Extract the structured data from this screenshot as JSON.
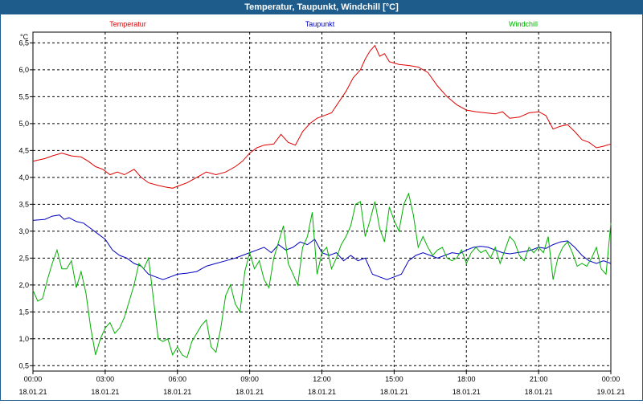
{
  "window": {
    "title": "Temperatur, Taupunkt, Windchill [°C]"
  },
  "chart_data": {
    "type": "line",
    "title": "Temperatur, Taupunkt, Windchill [°C]",
    "ylabel": "°C",
    "ylim": [
      0.4,
      6.7
    ],
    "xlim": [
      0,
      24
    ],
    "grid": true,
    "legend": "top",
    "x_ticks": [
      {
        "time": "00:00",
        "date": "18.01.21"
      },
      {
        "time": "03:00",
        "date": "18.01.21"
      },
      {
        "time": "06:00",
        "date": "18.01.21"
      },
      {
        "time": "09:00",
        "date": "18.01.21"
      },
      {
        "time": "12:00",
        "date": "18.01.21"
      },
      {
        "time": "15:00",
        "date": "18.01.21"
      },
      {
        "time": "18:00",
        "date": "18.01.21"
      },
      {
        "time": "21:00",
        "date": "18.01.21"
      },
      {
        "time": "00:00",
        "date": "19.01.21"
      }
    ],
    "y_ticks": [
      "0,5",
      "1,0",
      "1,5",
      "2,0",
      "2,5",
      "3,0",
      "3,5",
      "4,0",
      "4,5",
      "5,0",
      "5,5",
      "6,0",
      "6,5"
    ],
    "series": [
      {
        "name": "Temperatur",
        "color": "#e00000",
        "points": [
          [
            0,
            4.3
          ],
          [
            0.5,
            4.35
          ],
          [
            0.8,
            4.4
          ],
          [
            1.2,
            4.45
          ],
          [
            1.6,
            4.4
          ],
          [
            2,
            4.38
          ],
          [
            2.3,
            4.3
          ],
          [
            2.6,
            4.2
          ],
          [
            2.9,
            4.15
          ],
          [
            3.2,
            4.05
          ],
          [
            3.5,
            4.1
          ],
          [
            3.8,
            4.05
          ],
          [
            4.2,
            4.15
          ],
          [
            4.5,
            4.0
          ],
          [
            4.8,
            3.9
          ],
          [
            5.2,
            3.85
          ],
          [
            5.5,
            3.82
          ],
          [
            5.8,
            3.8
          ],
          [
            6.1,
            3.85
          ],
          [
            6.4,
            3.9
          ],
          [
            6.8,
            4.0
          ],
          [
            7.2,
            4.1
          ],
          [
            7.6,
            4.05
          ],
          [
            8,
            4.1
          ],
          [
            8.4,
            4.2
          ],
          [
            8.7,
            4.3
          ],
          [
            9,
            4.45
          ],
          [
            9.3,
            4.55
          ],
          [
            9.6,
            4.6
          ],
          [
            10,
            4.62
          ],
          [
            10.3,
            4.8
          ],
          [
            10.6,
            4.65
          ],
          [
            10.9,
            4.6
          ],
          [
            11.2,
            4.85
          ],
          [
            11.5,
            5.0
          ],
          [
            11.8,
            5.1
          ],
          [
            12.1,
            5.15
          ],
          [
            12.4,
            5.2
          ],
          [
            12.7,
            5.4
          ],
          [
            13,
            5.6
          ],
          [
            13.3,
            5.85
          ],
          [
            13.6,
            6.0
          ],
          [
            13.8,
            6.2
          ],
          [
            14,
            6.35
          ],
          [
            14.2,
            6.45
          ],
          [
            14.4,
            6.25
          ],
          [
            14.6,
            6.3
          ],
          [
            14.8,
            6.15
          ],
          [
            15.2,
            6.1
          ],
          [
            15.6,
            6.08
          ],
          [
            16,
            6.05
          ],
          [
            16.4,
            5.95
          ],
          [
            16.8,
            5.7
          ],
          [
            17.2,
            5.5
          ],
          [
            17.6,
            5.35
          ],
          [
            18,
            5.25
          ],
          [
            18.4,
            5.22
          ],
          [
            18.8,
            5.2
          ],
          [
            19.2,
            5.18
          ],
          [
            19.5,
            5.22
          ],
          [
            19.8,
            5.1
          ],
          [
            20.2,
            5.12
          ],
          [
            20.6,
            5.2
          ],
          [
            21,
            5.22
          ],
          [
            21.3,
            5.15
          ],
          [
            21.6,
            4.9
          ],
          [
            21.9,
            4.95
          ],
          [
            22.2,
            4.98
          ],
          [
            22.5,
            4.85
          ],
          [
            22.8,
            4.7
          ],
          [
            23.1,
            4.65
          ],
          [
            23.4,
            4.55
          ],
          [
            23.7,
            4.58
          ],
          [
            24,
            4.62
          ]
        ]
      },
      {
        "name": "Taupunkt",
        "color": "#0000c0",
        "points": [
          [
            0,
            3.2
          ],
          [
            0.5,
            3.22
          ],
          [
            0.8,
            3.28
          ],
          [
            1.1,
            3.3
          ],
          [
            1.3,
            3.22
          ],
          [
            1.5,
            3.25
          ],
          [
            1.8,
            3.18
          ],
          [
            2.1,
            3.15
          ],
          [
            2.4,
            3.05
          ],
          [
            2.7,
            2.95
          ],
          [
            3,
            2.85
          ],
          [
            3.3,
            2.65
          ],
          [
            3.6,
            2.55
          ],
          [
            3.9,
            2.5
          ],
          [
            4.2,
            2.4
          ],
          [
            4.5,
            2.35
          ],
          [
            4.8,
            2.2
          ],
          [
            5.1,
            2.15
          ],
          [
            5.4,
            2.1
          ],
          [
            5.7,
            2.15
          ],
          [
            6,
            2.2
          ],
          [
            6.4,
            2.22
          ],
          [
            6.8,
            2.25
          ],
          [
            7.2,
            2.35
          ],
          [
            7.6,
            2.4
          ],
          [
            8,
            2.45
          ],
          [
            8.4,
            2.5
          ],
          [
            8.7,
            2.55
          ],
          [
            9,
            2.6
          ],
          [
            9.3,
            2.65
          ],
          [
            9.6,
            2.7
          ],
          [
            9.9,
            2.6
          ],
          [
            10.2,
            2.75
          ],
          [
            10.5,
            2.65
          ],
          [
            10.8,
            2.7
          ],
          [
            11.1,
            2.8
          ],
          [
            11.4,
            2.75
          ],
          [
            11.7,
            2.85
          ],
          [
            12,
            2.6
          ],
          [
            12.3,
            2.55
          ],
          [
            12.6,
            2.6
          ],
          [
            12.9,
            2.45
          ],
          [
            13.2,
            2.55
          ],
          [
            13.5,
            2.45
          ],
          [
            13.8,
            2.5
          ],
          [
            14.1,
            2.2
          ],
          [
            14.4,
            2.15
          ],
          [
            14.7,
            2.1
          ],
          [
            15,
            2.15
          ],
          [
            15.3,
            2.2
          ],
          [
            15.6,
            2.45
          ],
          [
            15.9,
            2.55
          ],
          [
            16.2,
            2.6
          ],
          [
            16.5,
            2.55
          ],
          [
            16.8,
            2.5
          ],
          [
            17.1,
            2.55
          ],
          [
            17.4,
            2.6
          ],
          [
            17.7,
            2.58
          ],
          [
            18,
            2.65
          ],
          [
            18.3,
            2.7
          ],
          [
            18.6,
            2.72
          ],
          [
            18.9,
            2.7
          ],
          [
            19.2,
            2.65
          ],
          [
            19.5,
            2.6
          ],
          [
            19.8,
            2.58
          ],
          [
            20.1,
            2.6
          ],
          [
            20.4,
            2.62
          ],
          [
            20.7,
            2.65
          ],
          [
            21,
            2.7
          ],
          [
            21.3,
            2.68
          ],
          [
            21.6,
            2.75
          ],
          [
            21.9,
            2.8
          ],
          [
            22.2,
            2.82
          ],
          [
            22.5,
            2.7
          ],
          [
            22.8,
            2.55
          ],
          [
            23.1,
            2.45
          ],
          [
            23.4,
            2.4
          ],
          [
            23.7,
            2.45
          ],
          [
            24,
            2.4
          ]
        ]
      },
      {
        "name": "Windchill",
        "color": "#00b000",
        "points": [
          [
            0,
            1.9
          ],
          [
            0.2,
            1.7
          ],
          [
            0.4,
            1.75
          ],
          [
            0.6,
            2.1
          ],
          [
            0.8,
            2.4
          ],
          [
            1,
            2.65
          ],
          [
            1.2,
            2.3
          ],
          [
            1.4,
            2.3
          ],
          [
            1.6,
            2.45
          ],
          [
            1.8,
            1.95
          ],
          [
            2,
            2.25
          ],
          [
            2.2,
            1.85
          ],
          [
            2.4,
            1.2
          ],
          [
            2.6,
            0.7
          ],
          [
            2.8,
            1.0
          ],
          [
            3,
            1.2
          ],
          [
            3.2,
            1.3
          ],
          [
            3.4,
            1.1
          ],
          [
            3.6,
            1.2
          ],
          [
            3.8,
            1.4
          ],
          [
            4,
            1.7
          ],
          [
            4.2,
            2.0
          ],
          [
            4.4,
            2.4
          ],
          [
            4.6,
            2.3
          ],
          [
            4.8,
            2.5
          ],
          [
            5,
            1.75
          ],
          [
            5.2,
            1.0
          ],
          [
            5.4,
            0.95
          ],
          [
            5.6,
            1.0
          ],
          [
            5.8,
            0.7
          ],
          [
            6,
            0.85
          ],
          [
            6.2,
            0.7
          ],
          [
            6.4,
            0.65
          ],
          [
            6.6,
            0.95
          ],
          [
            6.8,
            1.1
          ],
          [
            7,
            1.25
          ],
          [
            7.2,
            1.35
          ],
          [
            7.4,
            0.85
          ],
          [
            7.6,
            0.75
          ],
          [
            7.8,
            1.2
          ],
          [
            8,
            1.8
          ],
          [
            8.2,
            2.0
          ],
          [
            8.4,
            1.65
          ],
          [
            8.6,
            1.5
          ],
          [
            8.8,
            2.25
          ],
          [
            9,
            2.6
          ],
          [
            9.2,
            2.3
          ],
          [
            9.4,
            2.45
          ],
          [
            9.6,
            2.1
          ],
          [
            9.8,
            1.95
          ],
          [
            10,
            2.5
          ],
          [
            10.2,
            2.8
          ],
          [
            10.4,
            3.1
          ],
          [
            10.6,
            2.4
          ],
          [
            10.8,
            2.2
          ],
          [
            11,
            2.0
          ],
          [
            11.2,
            2.7
          ],
          [
            11.4,
            2.9
          ],
          [
            11.6,
            3.35
          ],
          [
            11.8,
            2.2
          ],
          [
            12,
            2.6
          ],
          [
            12.2,
            2.7
          ],
          [
            12.4,
            2.3
          ],
          [
            12.6,
            2.5
          ],
          [
            12.8,
            2.75
          ],
          [
            13,
            2.9
          ],
          [
            13.2,
            3.1
          ],
          [
            13.4,
            3.5
          ],
          [
            13.6,
            3.55
          ],
          [
            13.8,
            2.9
          ],
          [
            14,
            3.2
          ],
          [
            14.2,
            3.55
          ],
          [
            14.4,
            3.05
          ],
          [
            14.6,
            2.8
          ],
          [
            14.8,
            3.45
          ],
          [
            15,
            3.2
          ],
          [
            15.2,
            3.0
          ],
          [
            15.4,
            3.5
          ],
          [
            15.6,
            3.7
          ],
          [
            15.8,
            3.3
          ],
          [
            16,
            2.7
          ],
          [
            16.2,
            2.9
          ],
          [
            16.4,
            2.7
          ],
          [
            16.6,
            2.55
          ],
          [
            16.8,
            2.65
          ],
          [
            17,
            2.7
          ],
          [
            17.2,
            2.5
          ],
          [
            17.4,
            2.45
          ],
          [
            17.6,
            2.5
          ],
          [
            17.8,
            2.65
          ],
          [
            18,
            2.4
          ],
          [
            18.2,
            2.6
          ],
          [
            18.4,
            2.7
          ],
          [
            18.6,
            2.6
          ],
          [
            18.8,
            2.65
          ],
          [
            19,
            2.5
          ],
          [
            19.2,
            2.7
          ],
          [
            19.4,
            2.4
          ],
          [
            19.6,
            2.65
          ],
          [
            19.8,
            2.9
          ],
          [
            20,
            2.8
          ],
          [
            20.2,
            2.55
          ],
          [
            20.4,
            2.45
          ],
          [
            20.6,
            2.7
          ],
          [
            20.8,
            2.6
          ],
          [
            21,
            2.7
          ],
          [
            21.2,
            2.6
          ],
          [
            21.4,
            2.9
          ],
          [
            21.6,
            2.1
          ],
          [
            21.8,
            2.5
          ],
          [
            22,
            2.7
          ],
          [
            22.2,
            2.8
          ],
          [
            22.4,
            2.6
          ],
          [
            22.6,
            2.35
          ],
          [
            22.8,
            2.4
          ],
          [
            23,
            2.35
          ],
          [
            23.2,
            2.5
          ],
          [
            23.4,
            2.7
          ],
          [
            23.6,
            2.3
          ],
          [
            23.8,
            2.2
          ],
          [
            24,
            3.15
          ]
        ]
      }
    ]
  }
}
